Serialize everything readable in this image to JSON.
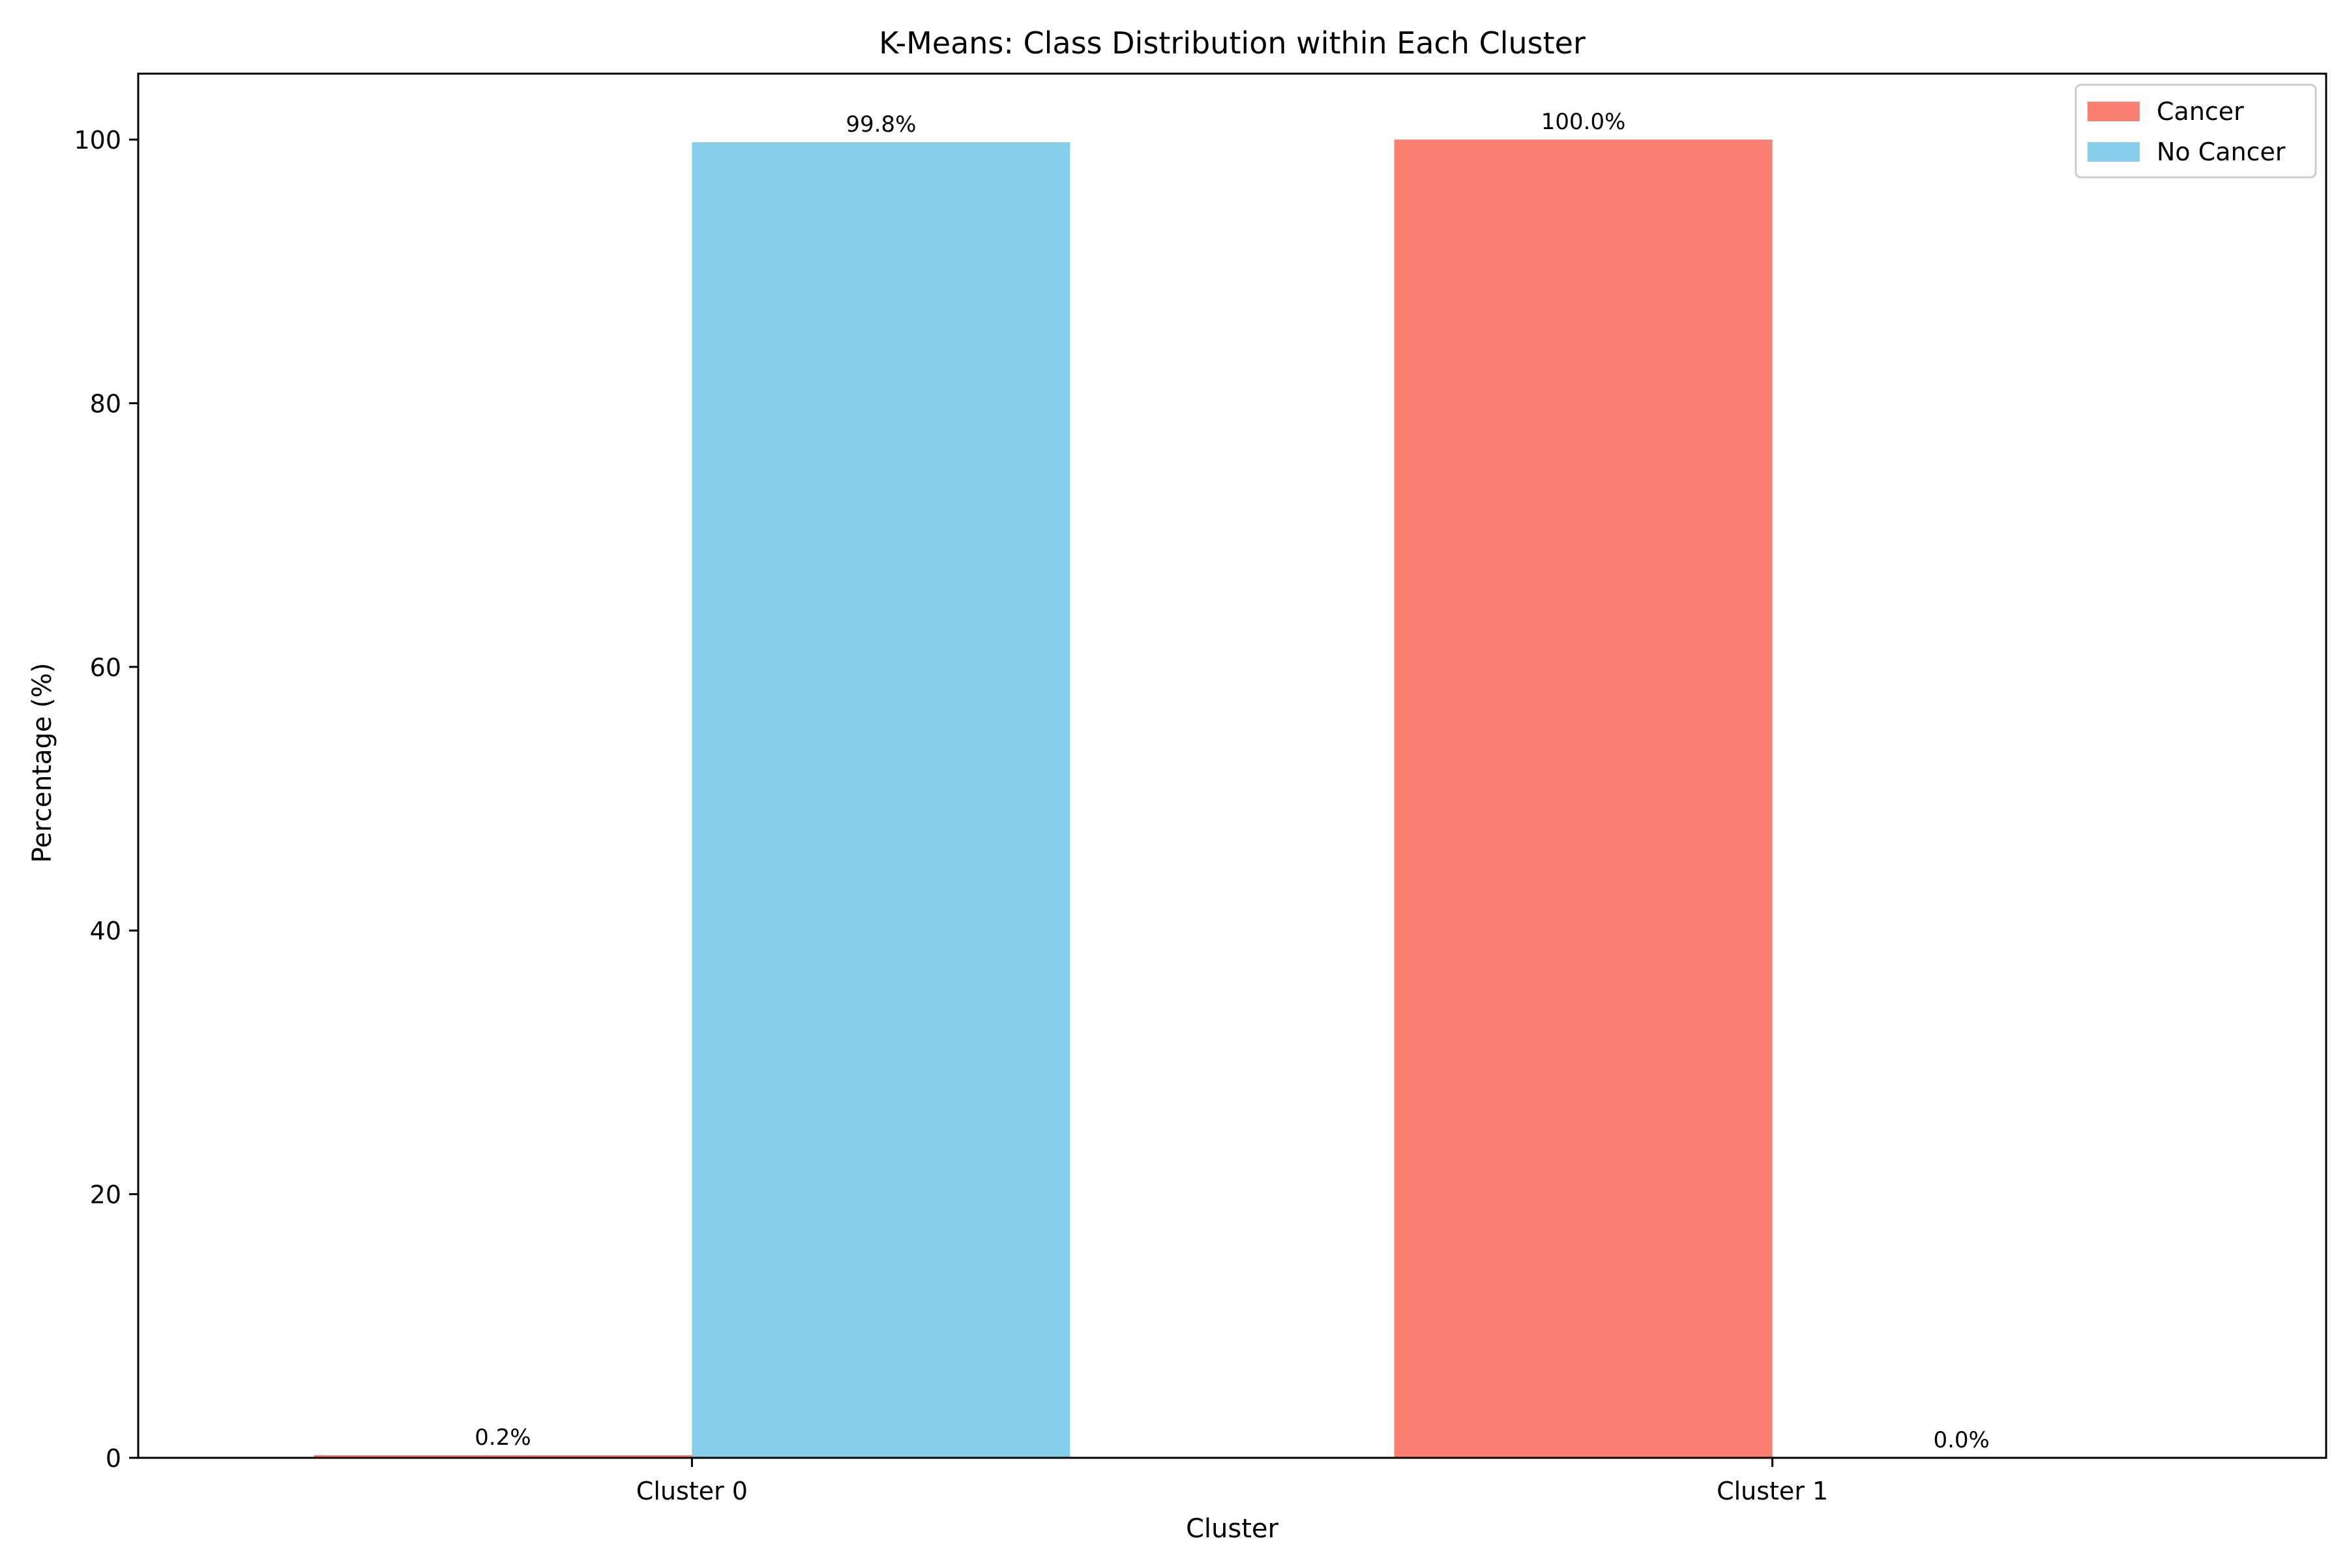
{
  "chart_data": {
    "type": "bar",
    "title": "K-Means: Class Distribution within Each Cluster",
    "xlabel": "Cluster",
    "ylabel": "Percentage (%)",
    "categories": [
      "Cluster 0",
      "Cluster 1"
    ],
    "series": [
      {
        "name": "Cancer",
        "color": "#fa8072",
        "values": [
          0.2,
          100.0
        ],
        "labels": [
          "0.2%",
          "100.0%"
        ]
      },
      {
        "name": "No Cancer",
        "color": "#87ceeb",
        "values": [
          99.8,
          0.0
        ],
        "labels": [
          "99.8%",
          "0.0%"
        ]
      }
    ],
    "ylim": [
      0,
      105
    ],
    "yticks": [
      0,
      20,
      40,
      60,
      80,
      100
    ],
    "grid": false,
    "legend_position": "top-right"
  }
}
